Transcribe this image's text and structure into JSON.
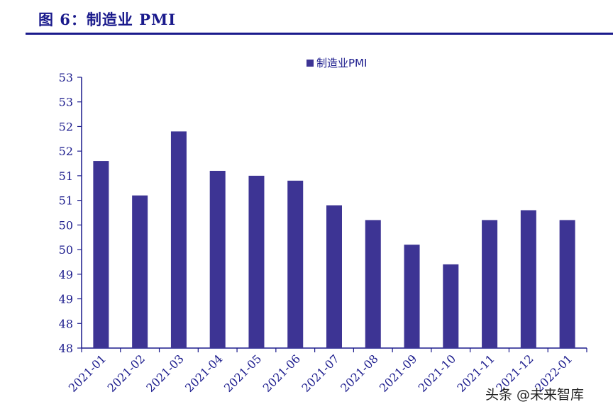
{
  "figure": {
    "title": "图 6：制造业 PMI"
  },
  "watermark": {
    "text": "头条 @未来智库"
  },
  "colors": {
    "bar": "#3d3494",
    "title": "#1a1a8c",
    "axis": "#1a1a8c"
  },
  "chart_data": {
    "type": "bar",
    "title": "",
    "xlabel": "",
    "ylabel": "",
    "legend": {
      "label": "制造业PMI",
      "placement": "top-center"
    },
    "categories": [
      "2021-01",
      "2021-02",
      "2021-03",
      "2021-04",
      "2021-05",
      "2021-06",
      "2021-07",
      "2021-08",
      "2021-09",
      "2021-10",
      "2021-11",
      "2021-12",
      "2022-01"
    ],
    "series": [
      {
        "name": "制造业PMI",
        "values": [
          51.3,
          50.6,
          51.9,
          51.1,
          51.0,
          50.9,
          50.4,
          50.1,
          49.6,
          49.2,
          50.1,
          50.3,
          50.1
        ]
      }
    ],
    "ylim": [
      47.5,
      53.0
    ],
    "yticks": [
      47.5,
      48.0,
      48.5,
      49.0,
      49.5,
      50.0,
      50.5,
      51.0,
      51.5,
      52.0,
      52.5,
      53.0
    ],
    "ytick_labels": [
      "48",
      "48",
      "49",
      "49",
      "50",
      "50",
      "51",
      "51",
      "52",
      "52",
      "53",
      "53"
    ]
  }
}
